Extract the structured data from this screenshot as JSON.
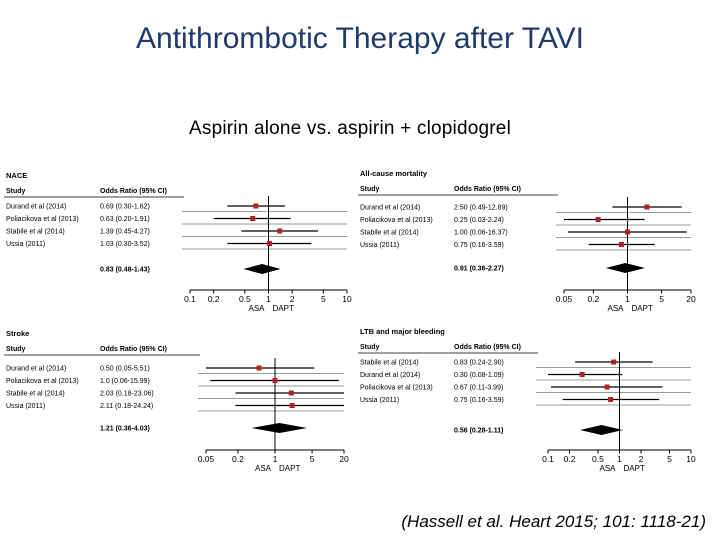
{
  "page": {
    "title": "Antithrombotic Therapy after  TAVI",
    "subtitle": "Aspirin alone vs. aspirin + clopidogrel",
    "citation": "(Hassell et al. Heart 2015; 101: 1118-21)"
  },
  "colors": {
    "title": "#1f3a6b",
    "marker": "#b22222",
    "diamond": "#000000"
  },
  "chart_data": [
    {
      "type": "forest",
      "title": "NACE",
      "col_study": "Study",
      "col_or": "Odds Ratio (95% CI)",
      "scale": "log",
      "xlim": [
        0.1,
        10
      ],
      "ticks": [
        0.1,
        0.2,
        0.5,
        1,
        2,
        5,
        10
      ],
      "tick_labels": [
        "0.1",
        "0.2",
        "0.5",
        "1",
        "2",
        "5",
        "10"
      ],
      "xlabel_left": "ASA",
      "xlabel_right": "DAPT",
      "studies": [
        {
          "name": "Durand et al (2014)",
          "or_text": "0.69 (0.30-1.62)",
          "or": 0.69,
          "lo": 0.3,
          "hi": 1.62
        },
        {
          "name": "Poliacikova et al (2013)",
          "or_text": "0.63 (0.20-1.91)",
          "or": 0.63,
          "lo": 0.2,
          "hi": 1.91
        },
        {
          "name": "Stabile et al (2014)",
          "or_text": "1.39 (0.45-4.27)",
          "or": 1.39,
          "lo": 0.45,
          "hi": 4.27
        },
        {
          "name": "Ussia (2011)",
          "or_text": "1.03 (0.30-3.52)",
          "or": 1.03,
          "lo": 0.3,
          "hi": 3.52
        }
      ],
      "pooled": {
        "or_text": "0.83 (0.48-1.43)",
        "or": 0.83,
        "lo": 0.48,
        "hi": 1.43
      }
    },
    {
      "type": "forest",
      "title": "All-cause mortality",
      "col_study": "Study",
      "col_or": "Odds Ratio (95% CI)",
      "scale": "log",
      "xlim": [
        0.05,
        20
      ],
      "ticks": [
        0.05,
        0.2,
        1,
        5,
        20
      ],
      "tick_labels": [
        "0.05",
        "0.2",
        "1",
        "5",
        "20"
      ],
      "xlabel_left": "ASA",
      "xlabel_right": "DAPT",
      "studies": [
        {
          "name": "Durand et al (2014)",
          "or_text": "2.50 (0.49-12.89)",
          "or": 2.5,
          "lo": 0.49,
          "hi": 12.89
        },
        {
          "name": "Poliacikova et al (2013)",
          "or_text": "0.25 (0.03-2.24)",
          "or": 0.25,
          "lo": 0.03,
          "hi": 2.24
        },
        {
          "name": "Stabile et al (2014)",
          "or_text": "1.00 (0.06-16.37)",
          "or": 1.0,
          "lo": 0.06,
          "hi": 16.37
        },
        {
          "name": "Ussia (2011)",
          "or_text": "0.75 (0.16-3.59)",
          "or": 0.75,
          "lo": 0.16,
          "hi": 3.59
        }
      ],
      "pooled": {
        "or_text": "0.91 (0.36-2.27)",
        "or": 0.91,
        "lo": 0.36,
        "hi": 2.27
      }
    },
    {
      "type": "forest",
      "title": "Stroke",
      "col_study": "Study",
      "col_or": "Odds Ratio (95% CI)",
      "scale": "log",
      "xlim": [
        0.05,
        20
      ],
      "ticks": [
        0.05,
        0.2,
        1,
        5,
        20
      ],
      "tick_labels": [
        "0.05",
        "0.2",
        "1",
        "5",
        "20"
      ],
      "xlabel_left": "ASA",
      "xlabel_right": "DAPT",
      "studies": [
        {
          "name": "Durand et al (2014)",
          "or_text": "0.50 (0.05-5.51)",
          "or": 0.5,
          "lo": 0.05,
          "hi": 5.51
        },
        {
          "name": "Poliacikova et al (2013)",
          "or_text": "1.0 (0.06-15.99)",
          "or": 1.0,
          "lo": 0.06,
          "hi": 15.99
        },
        {
          "name": "Stabile et al (2014)",
          "or_text": "2.03 (0.18-23.06)",
          "or": 2.03,
          "lo": 0.18,
          "hi": 23.06
        },
        {
          "name": "Ussia (2011)",
          "or_text": "2.11 (0.18-24.24)",
          "or": 2.11,
          "lo": 0.18,
          "hi": 24.24
        }
      ],
      "pooled": {
        "or_text": "1.21 (0.36-4.03)",
        "or": 1.21,
        "lo": 0.36,
        "hi": 4.03
      }
    },
    {
      "type": "forest",
      "title": "LTB and major bleeding",
      "col_study": "Study",
      "col_or": "Odds Ratio (95% CI)",
      "scale": "log",
      "xlim": [
        0.1,
        10
      ],
      "ticks": [
        0.1,
        0.2,
        0.5,
        1,
        2,
        5,
        10
      ],
      "tick_labels": [
        "0.1",
        "0.2",
        "0.5",
        "1",
        "2",
        "5",
        "10"
      ],
      "xlabel_left": "ASA",
      "xlabel_right": "DAPT",
      "studies": [
        {
          "name": "Stabile et al (2014)",
          "or_text": "0.83 (0.24-2.90)",
          "or": 0.83,
          "lo": 0.24,
          "hi": 2.9
        },
        {
          "name": "Durand et al (2014)",
          "or_text": "0.30 (0.08-1.09)",
          "or": 0.3,
          "lo": 0.08,
          "hi": 1.09
        },
        {
          "name": "Poliacikova et al (2013)",
          "or_text": "0.67 (0.11-3.99)",
          "or": 0.67,
          "lo": 0.11,
          "hi": 3.99
        },
        {
          "name": "Ussia (2011)",
          "or_text": "0.75 (0.16-3.59)",
          "or": 0.75,
          "lo": 0.16,
          "hi": 3.59
        }
      ],
      "pooled": {
        "or_text": "0.56 (0.28-1.11)",
        "or": 0.56,
        "lo": 0.28,
        "hi": 1.11
      }
    }
  ]
}
